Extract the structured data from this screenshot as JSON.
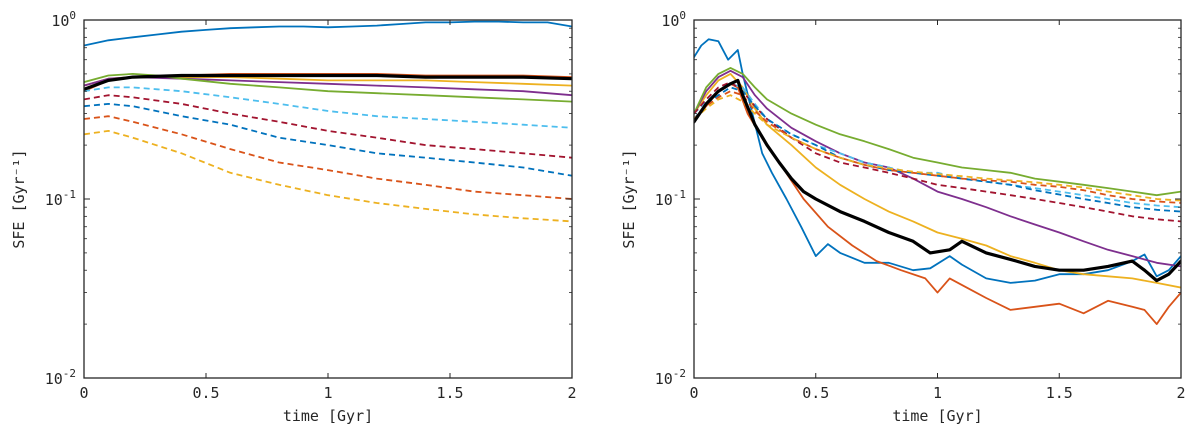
{
  "chart_data": [
    {
      "type": "line",
      "xlabel": "time [Gyr]",
      "ylabel": "SFE [Gyr⁻¹]",
      "xlim": [
        0,
        2
      ],
      "ylim": [
        0.01,
        1
      ],
      "yscale": "log",
      "xticks": [
        "0",
        "0.5",
        "1",
        "1.5",
        "2"
      ],
      "yticks": [
        {
          "base": "10",
          "exp": "-2"
        },
        {
          "base": "10",
          "exp": "-1"
        },
        {
          "base": "10",
          "exp": "0"
        }
      ],
      "grid": false,
      "series": [
        {
          "color": "#0072BD",
          "style": "solid",
          "width": 1.8,
          "x": [
            0,
            0.1,
            0.2,
            0.3,
            0.4,
            0.5,
            0.6,
            0.7,
            0.8,
            0.9,
            1.0,
            1.1,
            1.2,
            1.3,
            1.4,
            1.5,
            1.6,
            1.7,
            1.8,
            1.9,
            2.0
          ],
          "y": [
            0.72,
            0.77,
            0.8,
            0.83,
            0.86,
            0.88,
            0.9,
            0.91,
            0.92,
            0.92,
            0.91,
            0.92,
            0.93,
            0.95,
            0.97,
            0.97,
            0.98,
            0.98,
            0.97,
            0.97,
            0.92
          ]
        },
        {
          "color": "#D95319",
          "style": "solid",
          "width": 1.8,
          "x": [
            0,
            0.1,
            0.2,
            0.4,
            0.6,
            0.8,
            1.0,
            1.2,
            1.4,
            1.6,
            1.8,
            2.0
          ],
          "y": [
            0.4,
            0.46,
            0.48,
            0.49,
            0.5,
            0.5,
            0.5,
            0.5,
            0.49,
            0.49,
            0.49,
            0.48
          ]
        },
        {
          "color": "#EDB120",
          "style": "solid",
          "width": 1.8,
          "x": [
            0,
            0.1,
            0.2,
            0.4,
            0.6,
            0.8,
            1.0,
            1.2,
            1.4,
            1.6,
            1.8,
            2.0
          ],
          "y": [
            0.43,
            0.47,
            0.48,
            0.48,
            0.48,
            0.47,
            0.46,
            0.46,
            0.46,
            0.45,
            0.44,
            0.43
          ]
        },
        {
          "color": "#7E2F8E",
          "style": "solid",
          "width": 1.8,
          "x": [
            0,
            0.1,
            0.2,
            0.4,
            0.6,
            0.8,
            1.0,
            1.2,
            1.4,
            1.6,
            1.8,
            2.0
          ],
          "y": [
            0.43,
            0.47,
            0.48,
            0.47,
            0.46,
            0.45,
            0.44,
            0.43,
            0.42,
            0.41,
            0.4,
            0.38
          ]
        },
        {
          "color": "#77AC30",
          "style": "solid",
          "width": 1.8,
          "x": [
            0,
            0.1,
            0.2,
            0.3,
            0.4,
            0.6,
            0.8,
            1.0,
            1.2,
            1.4,
            1.6,
            1.8,
            2.0
          ],
          "y": [
            0.45,
            0.49,
            0.5,
            0.49,
            0.47,
            0.44,
            0.42,
            0.4,
            0.39,
            0.38,
            0.37,
            0.36,
            0.35
          ]
        },
        {
          "color": "#4DBEEE",
          "style": "dashed",
          "width": 1.8,
          "x": [
            0,
            0.1,
            0.2,
            0.3,
            0.4,
            0.6,
            0.8,
            1.0,
            1.2,
            1.4,
            1.6,
            1.8,
            2.0
          ],
          "y": [
            0.4,
            0.42,
            0.42,
            0.41,
            0.4,
            0.37,
            0.34,
            0.31,
            0.29,
            0.28,
            0.27,
            0.26,
            0.25
          ]
        },
        {
          "color": "#A2142F",
          "style": "dashed",
          "width": 1.8,
          "x": [
            0,
            0.1,
            0.2,
            0.4,
            0.6,
            0.8,
            1.0,
            1.2,
            1.4,
            1.6,
            1.8,
            2.0
          ],
          "y": [
            0.36,
            0.38,
            0.37,
            0.34,
            0.3,
            0.27,
            0.24,
            0.22,
            0.2,
            0.19,
            0.18,
            0.17
          ]
        },
        {
          "color": "#0072BD",
          "style": "dashed",
          "width": 1.8,
          "x": [
            0,
            0.1,
            0.2,
            0.4,
            0.6,
            0.8,
            1.0,
            1.2,
            1.4,
            1.6,
            1.8,
            2.0
          ],
          "y": [
            0.33,
            0.34,
            0.33,
            0.29,
            0.26,
            0.22,
            0.2,
            0.18,
            0.17,
            0.16,
            0.15,
            0.135
          ]
        },
        {
          "color": "#D95319",
          "style": "dashed",
          "width": 1.8,
          "x": [
            0,
            0.1,
            0.2,
            0.4,
            0.6,
            0.8,
            1.0,
            1.2,
            1.4,
            1.6,
            1.8,
            2.0
          ],
          "y": [
            0.28,
            0.29,
            0.27,
            0.23,
            0.19,
            0.16,
            0.145,
            0.13,
            0.12,
            0.11,
            0.105,
            0.1
          ]
        },
        {
          "color": "#EDB120",
          "style": "dashed",
          "width": 1.8,
          "x": [
            0,
            0.1,
            0.2,
            0.4,
            0.6,
            0.8,
            1.0,
            1.2,
            1.4,
            1.6,
            1.8,
            2.0
          ],
          "y": [
            0.23,
            0.24,
            0.22,
            0.18,
            0.14,
            0.12,
            0.105,
            0.095,
            0.088,
            0.082,
            0.078,
            0.075
          ]
        },
        {
          "color": "#000000",
          "style": "solid",
          "width": 3.2,
          "x": [
            0,
            0.1,
            0.2,
            0.4,
            0.6,
            0.8,
            1.0,
            1.2,
            1.4,
            1.6,
            1.8,
            2.0
          ],
          "y": [
            0.41,
            0.46,
            0.48,
            0.49,
            0.49,
            0.49,
            0.49,
            0.49,
            0.48,
            0.48,
            0.48,
            0.47
          ]
        }
      ]
    },
    {
      "type": "line",
      "xlabel": "time [Gyr]",
      "ylabel": "SFE [Gyr⁻¹]",
      "xlim": [
        0,
        2
      ],
      "ylim": [
        0.01,
        1
      ],
      "yscale": "log",
      "xticks": [
        "0",
        "0.5",
        "1",
        "1.5",
        "2"
      ],
      "yticks": [
        {
          "base": "10",
          "exp": "-2"
        },
        {
          "base": "10",
          "exp": "-1"
        },
        {
          "base": "10",
          "exp": "0"
        }
      ],
      "grid": false,
      "series": [
        {
          "color": "#0072BD",
          "style": "solid",
          "width": 1.8,
          "x": [
            0,
            0.03,
            0.06,
            0.1,
            0.14,
            0.18,
            0.2,
            0.24,
            0.28,
            0.32,
            0.38,
            0.44,
            0.5,
            0.55,
            0.6,
            0.7,
            0.8,
            0.9,
            0.97,
            1.05,
            1.1,
            1.2,
            1.3,
            1.4,
            1.5,
            1.6,
            1.7,
            1.8,
            1.85,
            1.9,
            1.95,
            2.0
          ],
          "y": [
            0.62,
            0.72,
            0.78,
            0.76,
            0.6,
            0.68,
            0.5,
            0.3,
            0.18,
            0.14,
            0.1,
            0.07,
            0.048,
            0.056,
            0.05,
            0.044,
            0.044,
            0.04,
            0.041,
            0.048,
            0.043,
            0.036,
            0.034,
            0.035,
            0.038,
            0.038,
            0.04,
            0.045,
            0.049,
            0.037,
            0.04,
            0.048
          ]
        },
        {
          "color": "#D95319",
          "style": "solid",
          "width": 1.8,
          "x": [
            0,
            0.05,
            0.1,
            0.15,
            0.18,
            0.22,
            0.28,
            0.35,
            0.45,
            0.55,
            0.65,
            0.75,
            0.85,
            0.95,
            1.0,
            1.05,
            1.12,
            1.2,
            1.3,
            1.4,
            1.5,
            1.6,
            1.7,
            1.8,
            1.85,
            1.9,
            1.95,
            2.0
          ],
          "y": [
            0.28,
            0.33,
            0.4,
            0.44,
            0.42,
            0.3,
            0.22,
            0.16,
            0.1,
            0.07,
            0.055,
            0.045,
            0.04,
            0.036,
            0.03,
            0.036,
            0.032,
            0.028,
            0.024,
            0.025,
            0.026,
            0.023,
            0.027,
            0.025,
            0.024,
            0.02,
            0.025,
            0.03
          ]
        },
        {
          "color": "#EDB120",
          "style": "solid",
          "width": 1.8,
          "x": [
            0,
            0.05,
            0.1,
            0.15,
            0.2,
            0.25,
            0.3,
            0.4,
            0.5,
            0.6,
            0.7,
            0.8,
            0.9,
            1.0,
            1.1,
            1.2,
            1.3,
            1.4,
            1.5,
            1.6,
            1.7,
            1.8,
            1.9,
            2.0
          ],
          "y": [
            0.3,
            0.38,
            0.46,
            0.5,
            0.42,
            0.32,
            0.26,
            0.2,
            0.15,
            0.12,
            0.1,
            0.085,
            0.075,
            0.065,
            0.06,
            0.055,
            0.048,
            0.044,
            0.04,
            0.038,
            0.037,
            0.036,
            0.034,
            0.032
          ]
        },
        {
          "color": "#7E2F8E",
          "style": "solid",
          "width": 1.8,
          "x": [
            0,
            0.05,
            0.1,
            0.15,
            0.2,
            0.25,
            0.3,
            0.4,
            0.5,
            0.6,
            0.7,
            0.8,
            0.9,
            1.0,
            1.1,
            1.2,
            1.3,
            1.4,
            1.5,
            1.6,
            1.7,
            1.8,
            1.9,
            2.0
          ],
          "y": [
            0.3,
            0.4,
            0.48,
            0.52,
            0.48,
            0.38,
            0.32,
            0.25,
            0.21,
            0.18,
            0.16,
            0.15,
            0.13,
            0.11,
            0.1,
            0.09,
            0.08,
            0.072,
            0.065,
            0.058,
            0.052,
            0.048,
            0.044,
            0.042
          ]
        },
        {
          "color": "#77AC30",
          "style": "solid",
          "width": 1.8,
          "x": [
            0,
            0.05,
            0.1,
            0.15,
            0.2,
            0.25,
            0.3,
            0.4,
            0.5,
            0.6,
            0.7,
            0.8,
            0.9,
            1.0,
            1.1,
            1.2,
            1.3,
            1.4,
            1.5,
            1.6,
            1.7,
            1.8,
            1.9,
            2.0
          ],
          "y": [
            0.3,
            0.42,
            0.5,
            0.54,
            0.5,
            0.42,
            0.36,
            0.3,
            0.26,
            0.23,
            0.21,
            0.19,
            0.17,
            0.16,
            0.15,
            0.145,
            0.14,
            0.13,
            0.125,
            0.12,
            0.115,
            0.11,
            0.105,
            0.11
          ]
        },
        {
          "color": "#4DBEEE",
          "style": "dashed",
          "width": 1.8,
          "x": [
            0,
            0.05,
            0.1,
            0.15,
            0.2,
            0.25,
            0.3,
            0.4,
            0.5,
            0.6,
            0.7,
            0.8,
            0.9,
            1.0,
            1.1,
            1.2,
            1.3,
            1.4,
            1.5,
            1.6,
            1.7,
            1.8,
            1.9,
            2.0
          ],
          "y": [
            0.3,
            0.35,
            0.4,
            0.44,
            0.42,
            0.34,
            0.28,
            0.23,
            0.2,
            0.18,
            0.16,
            0.15,
            0.14,
            0.14,
            0.13,
            0.125,
            0.12,
            0.115,
            0.11,
            0.105,
            0.1,
            0.095,
            0.092,
            0.09
          ]
        },
        {
          "color": "#A2142F",
          "style": "dashed",
          "width": 1.8,
          "x": [
            0,
            0.05,
            0.1,
            0.15,
            0.2,
            0.25,
            0.3,
            0.4,
            0.5,
            0.6,
            0.7,
            0.8,
            0.9,
            1.0,
            1.1,
            1.2,
            1.3,
            1.4,
            1.5,
            1.6,
            1.7,
            1.8,
            1.9,
            2.0
          ],
          "y": [
            0.3,
            0.36,
            0.42,
            0.45,
            0.4,
            0.33,
            0.28,
            0.22,
            0.18,
            0.16,
            0.15,
            0.14,
            0.13,
            0.12,
            0.115,
            0.11,
            0.105,
            0.1,
            0.095,
            0.09,
            0.085,
            0.08,
            0.077,
            0.075
          ]
        },
        {
          "color": "#0072BD",
          "style": "dashed",
          "width": 1.8,
          "x": [
            0,
            0.05,
            0.1,
            0.15,
            0.2,
            0.25,
            0.3,
            0.4,
            0.5,
            0.6,
            0.7,
            0.8,
            0.9,
            1.0,
            1.1,
            1.2,
            1.3,
            1.4,
            1.5,
            1.6,
            1.7,
            1.8,
            1.9,
            2.0
          ],
          "y": [
            0.28,
            0.34,
            0.38,
            0.42,
            0.4,
            0.33,
            0.28,
            0.23,
            0.2,
            0.17,
            0.155,
            0.145,
            0.14,
            0.135,
            0.13,
            0.125,
            0.12,
            0.112,
            0.106,
            0.1,
            0.095,
            0.09,
            0.087,
            0.085
          ]
        },
        {
          "color": "#D95319",
          "style": "dashed",
          "width": 1.8,
          "x": [
            0,
            0.05,
            0.1,
            0.15,
            0.2,
            0.25,
            0.3,
            0.4,
            0.5,
            0.6,
            0.7,
            0.8,
            0.9,
            1.0,
            1.1,
            1.2,
            1.3,
            1.4,
            1.5,
            1.6,
            1.7,
            1.8,
            1.9,
            2.0
          ],
          "y": [
            0.28,
            0.33,
            0.37,
            0.4,
            0.38,
            0.31,
            0.27,
            0.22,
            0.19,
            0.17,
            0.155,
            0.145,
            0.14,
            0.135,
            0.13,
            0.127,
            0.125,
            0.12,
            0.117,
            0.112,
            0.105,
            0.1,
            0.097,
            0.095
          ]
        },
        {
          "color": "#EDB120",
          "style": "dashed",
          "width": 1.8,
          "x": [
            0,
            0.05,
            0.1,
            0.15,
            0.2,
            0.25,
            0.3,
            0.4,
            0.5,
            0.6,
            0.7,
            0.8,
            0.9,
            1.0,
            1.1,
            1.2,
            1.3,
            1.4,
            1.5,
            1.6,
            1.7,
            1.8,
            1.9,
            2.0
          ],
          "y": [
            0.28,
            0.32,
            0.36,
            0.38,
            0.35,
            0.3,
            0.26,
            0.22,
            0.19,
            0.17,
            0.155,
            0.148,
            0.142,
            0.138,
            0.134,
            0.13,
            0.127,
            0.124,
            0.12,
            0.116,
            0.11,
            0.105,
            0.1,
            0.098
          ]
        },
        {
          "color": "#000000",
          "style": "solid",
          "width": 3.2,
          "x": [
            0,
            0.05,
            0.1,
            0.15,
            0.18,
            0.2,
            0.25,
            0.3,
            0.35,
            0.4,
            0.45,
            0.5,
            0.6,
            0.7,
            0.8,
            0.9,
            0.97,
            1.05,
            1.1,
            1.2,
            1.3,
            1.4,
            1.5,
            1.6,
            1.7,
            1.8,
            1.85,
            1.9,
            1.95,
            2.0
          ],
          "y": [
            0.27,
            0.34,
            0.4,
            0.44,
            0.46,
            0.38,
            0.26,
            0.2,
            0.16,
            0.13,
            0.11,
            0.1,
            0.085,
            0.075,
            0.065,
            0.058,
            0.05,
            0.052,
            0.058,
            0.05,
            0.046,
            0.042,
            0.04,
            0.04,
            0.042,
            0.045,
            0.04,
            0.035,
            0.038,
            0.045
          ]
        }
      ]
    }
  ]
}
